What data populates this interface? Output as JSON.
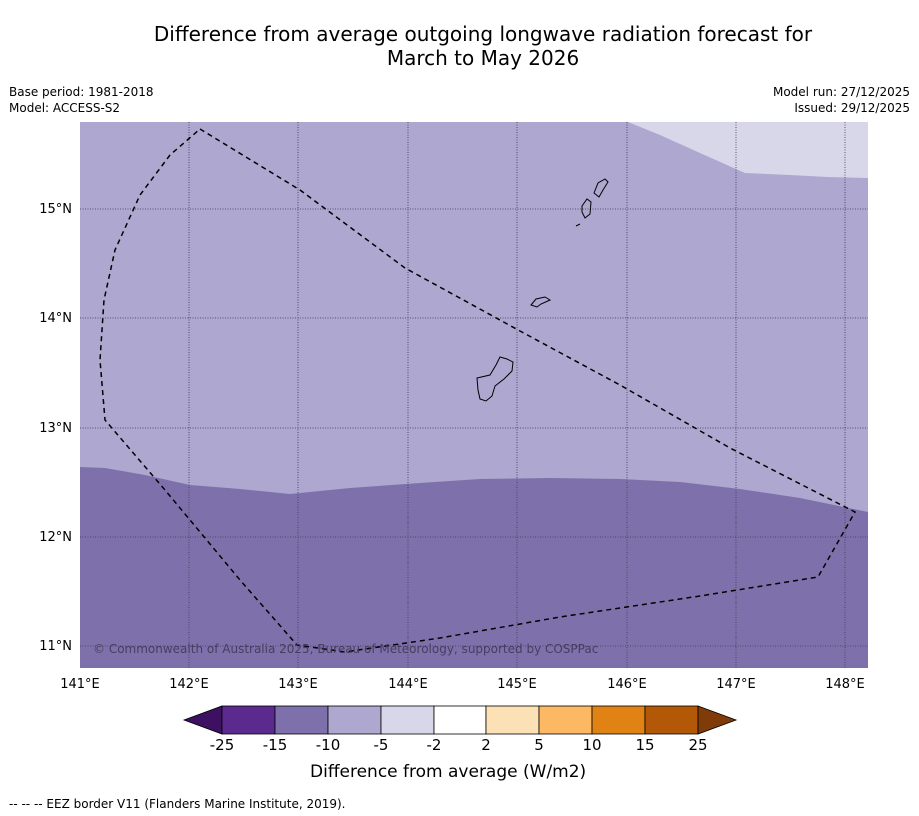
{
  "title_line1": "Difference from average outgoing longwave radiation forecast for",
  "title_line2": "March to May 2026",
  "base_period": "Base period: 1981-2018",
  "model": "Model: ACCESS-S2",
  "model_run": "Model run: 27/12/2025",
  "issued": "Issued: 29/12/2025",
  "map": {
    "lat_labels": [
      "15°N",
      "14°N",
      "13°N",
      "12°N",
      "11°N"
    ],
    "lon_labels": [
      "141°E",
      "142°E",
      "143°E",
      "144°E",
      "145°E",
      "146°E",
      "147°E",
      "148°E"
    ],
    "copyright": "© Commonwealth of Australia 2025, Bureau of Meteorology, supported by COSPPac"
  },
  "colorbar": {
    "title": "Difference from average (W/m2)",
    "labels": [
      "-25",
      "-15",
      "-10",
      "-5",
      "-2",
      "2",
      "5",
      "10",
      "15",
      "25"
    ],
    "colors": [
      "#3d1062",
      "#5a2a8e",
      "#7e71ab",
      "#aea7cf",
      "#d8d7ea",
      "#ffffff",
      "#fde1b6",
      "#fdb863",
      "#e08214",
      "#b35806",
      "#7f3b08"
    ]
  },
  "footer": "-- -- -- EEZ border V11 (Flanders Marine Institute, 2019)."
}
